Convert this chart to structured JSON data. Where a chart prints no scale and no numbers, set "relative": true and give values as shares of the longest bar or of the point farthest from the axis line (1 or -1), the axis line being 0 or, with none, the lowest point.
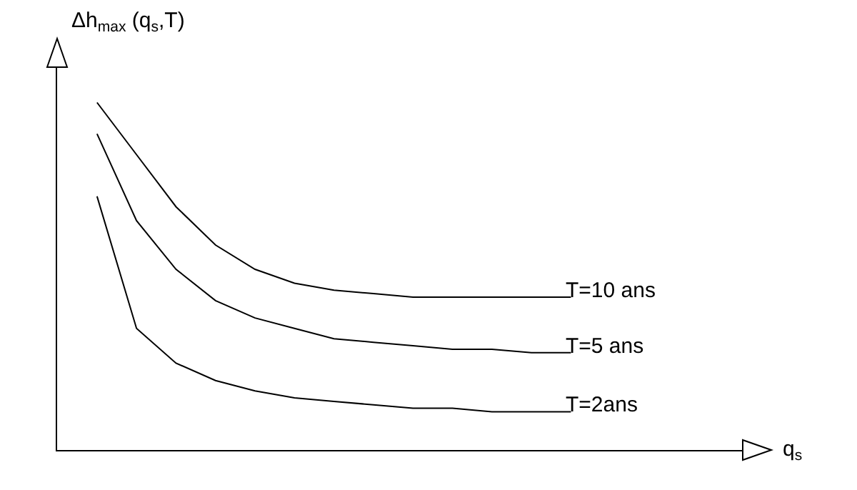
{
  "chart_data": {
    "type": "line",
    "relative": true,
    "ylabel": "Δh$_{max}$ (q$_{s}$,T)",
    "annotations": [
      "q$_{s}$"
    ],
    "categories": [
      null,
      null,
      null,
      null,
      null,
      null,
      null,
      null,
      null,
      null,
      null,
      null,
      null
    ],
    "marker": "none",
    "line_style": "solid",
    "legend": false,
    "series": [
      {
        "name": "T=10 ans",
        "color": "#000000",
        "values": [
          1,
          0.85,
          0.7,
          0.59,
          0.52,
          0.48,
          0.46,
          0.45,
          0.44,
          0.44,
          0.44,
          0.44,
          0.44
        ]
      },
      {
        "name": "T=5 ans",
        "color": "#000000",
        "values": [
          0.91,
          0.66,
          0.52,
          0.43,
          0.38,
          0.35,
          0.32,
          0.31,
          0.3,
          0.29,
          0.29,
          0.28,
          0.28
        ]
      },
      {
        "name": "T=2ans",
        "color": "#000000",
        "values": [
          0.73,
          0.35,
          0.25,
          0.2,
          0.17,
          0.15,
          0.14,
          0.13,
          0.12,
          0.12,
          0.11,
          0.11,
          0.11
        ]
      }
    ]
  }
}
